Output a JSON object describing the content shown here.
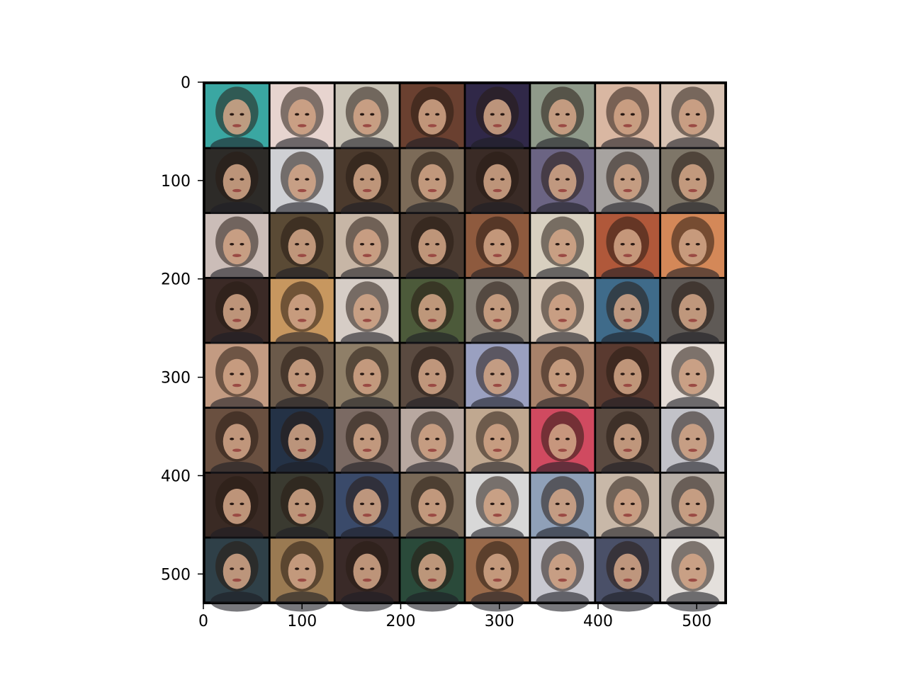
{
  "chart_data": {
    "type": "heatmap",
    "title": "",
    "xlabel": "",
    "ylabel": "",
    "xlim": [
      0,
      530
    ],
    "ylim": [
      530,
      0
    ],
    "x_ticks": [
      0,
      100,
      200,
      300,
      400,
      500
    ],
    "y_ticks": [
      0,
      100,
      200,
      300,
      400,
      500
    ],
    "x_tick_labels": [
      "0",
      "100",
      "200",
      "300",
      "400",
      "500"
    ],
    "y_tick_labels": [
      "0",
      "100",
      "200",
      "300",
      "400",
      "500"
    ],
    "grid": false,
    "image_grid": {
      "rows": 8,
      "cols": 8,
      "tile_size": 64,
      "padding": 2,
      "padding_color": "#000000",
      "content": "generated face portraits",
      "tile_colors": [
        [
          "#3aa7a2",
          "#e7d4cf",
          "#c9c3b6",
          "#6a4030",
          "#302848",
          "#8f9a8a",
          "#d9b7a2",
          "#d8c3b3"
        ],
        [
          "#2d2b28",
          "#cfd0d4",
          "#4b3a2d",
          "#7c6b58",
          "#3a2b26",
          "#6b6483",
          "#a7a3a0",
          "#7e7668"
        ],
        [
          "#cbbdb8",
          "#5a4a35",
          "#c7b6a6",
          "#4a3a30",
          "#8e5a3e",
          "#d8d0c0",
          "#b0583a",
          "#d48858"
        ],
        [
          "#3b2a26",
          "#c7975f",
          "#d6cdc6",
          "#4c5a3a",
          "#8a8278",
          "#d8c8b8",
          "#3f6b8a",
          "#5f5a56"
        ],
        [
          "#c39b82",
          "#6b5a4a",
          "#8f7f68",
          "#5a4a40",
          "#9aa0c0",
          "#a8826a",
          "#5a3a30",
          "#e4dcd6"
        ],
        [
          "#6a5040",
          "#243246",
          "#7b6a63",
          "#b8a8a0",
          "#c0a890",
          "#d04a60",
          "#5a4a40",
          "#c2c2c8"
        ],
        [
          "#3a2a24",
          "#3a3a30",
          "#3a4a6a",
          "#7a6a58",
          "#d8d8d8",
          "#8fa0b8",
          "#c8b8a8",
          "#b8b0a8"
        ],
        [
          "#2f4048",
          "#9a7a52",
          "#3a2a28",
          "#2a4a3a",
          "#9a6a4a",
          "#c8c8d0",
          "#4a5068",
          "#e4e0dc"
        ]
      ]
    }
  }
}
